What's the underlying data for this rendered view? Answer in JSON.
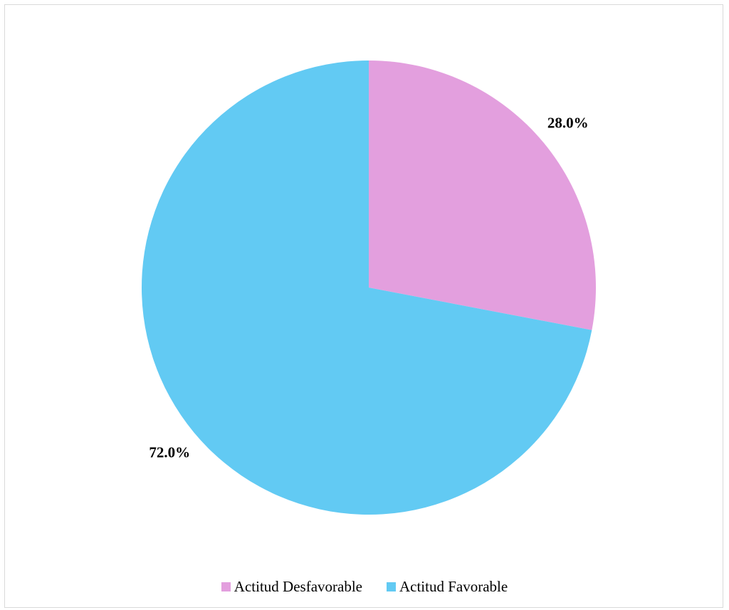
{
  "chart_data": {
    "type": "pie",
    "title": "",
    "slices": [
      {
        "label": "Actitud Desfavorable",
        "value": 28.0,
        "display": "28.0%",
        "color": "#e39fde"
      },
      {
        "label": "Actitud Favorable",
        "value": 72.0,
        "display": "72.0%",
        "color": "#62caf3"
      }
    ],
    "start_angle_deg": 0,
    "direction": "clockwise",
    "legend_placement": "bottom"
  }
}
